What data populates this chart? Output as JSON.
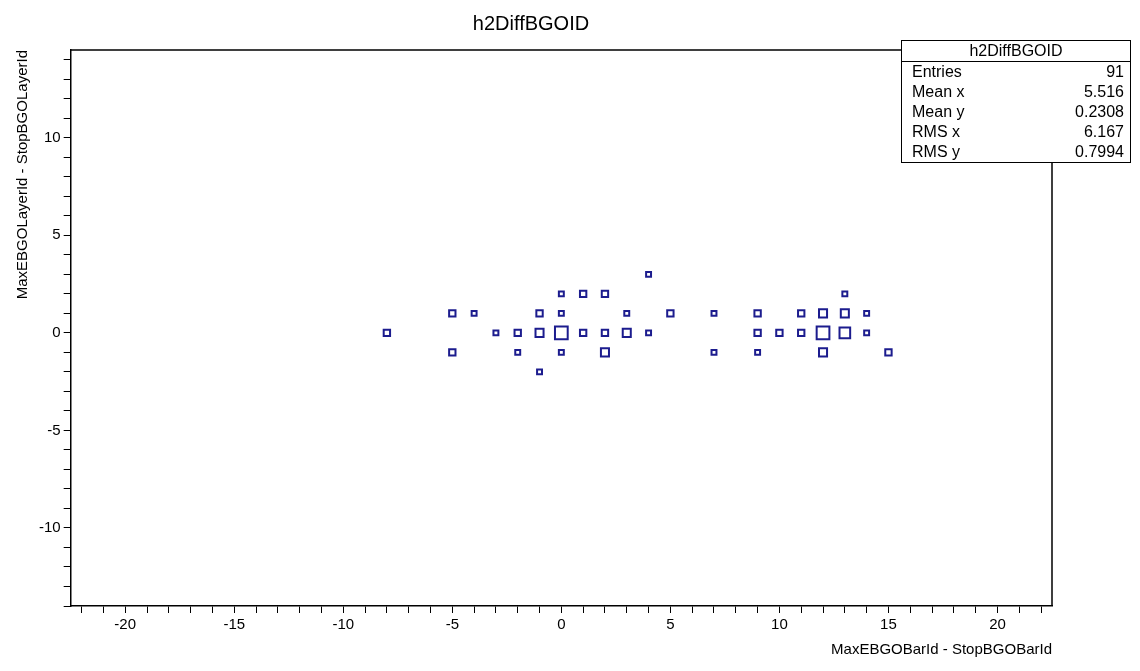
{
  "chart_data": {
    "type": "bubble",
    "title": "h2DiffBGOID",
    "xlabel": "MaxEBGOBarId - StopBGOBarId",
    "ylabel": "MaxEBGOLayerId - StopBGOLayerId",
    "x": [
      0,
      1,
      2,
      -5,
      -4,
      -1,
      0,
      3,
      5,
      7,
      9,
      11,
      12,
      13,
      14,
      -8,
      -3,
      -2,
      -1,
      0,
      1,
      2,
      3,
      4,
      9,
      10,
      11,
      12,
      13,
      14,
      -5,
      -2,
      0,
      2,
      7,
      9,
      12,
      15,
      -1,
      4,
      13
    ],
    "values": [
      2,
      2,
      2,
      1,
      1,
      1,
      1,
      1,
      1,
      1,
      1,
      1,
      1,
      1,
      1,
      0,
      0,
      0,
      0,
      0,
      0,
      0,
      0,
      0,
      0,
      0,
      0,
      0,
      0,
      0,
      -1,
      -1,
      -1,
      -1,
      -1,
      -1,
      -1,
      -1,
      -2,
      3,
      2
    ],
    "sizes": [
      0.15,
      0.25,
      0.25,
      0.25,
      0.15,
      0.25,
      0.15,
      0.15,
      0.25,
      0.15,
      0.25,
      0.25,
      0.4,
      0.4,
      0.15,
      0.25,
      0.15,
      0.25,
      0.4,
      1,
      0.25,
      0.25,
      0.4,
      0.15,
      0.25,
      0.25,
      0.25,
      1,
      0.7,
      0.15,
      0.25,
      0.15,
      0.15,
      0.4,
      0.15,
      0.15,
      0.4,
      0.25,
      0.15,
      0.15,
      0.15
    ],
    "color": "#1c1c8e",
    "marker": "square",
    "grid": false,
    "legend": false,
    "xlim": [
      -22.5,
      22.5
    ],
    "ylim": [
      -14,
      14.5
    ],
    "xticks": [
      {
        "value": -22,
        "label": null
      },
      {
        "value": -21,
        "label": null
      },
      -20,
      {
        "value": -19,
        "label": null
      },
      {
        "value": -18,
        "label": null
      },
      {
        "value": -17,
        "label": null
      },
      {
        "value": -16,
        "label": null
      },
      -15,
      {
        "value": -14,
        "label": null
      },
      {
        "value": -13,
        "label": null
      },
      {
        "value": -12,
        "label": null
      },
      {
        "value": -11,
        "label": null
      },
      -10,
      {
        "value": -9,
        "label": null
      },
      {
        "value": -8,
        "label": null
      },
      {
        "value": -7,
        "label": null
      },
      {
        "value": -6,
        "label": null
      },
      -5,
      {
        "value": -4,
        "label": null
      },
      {
        "value": -3,
        "label": null
      },
      {
        "value": -2,
        "label": null
      },
      {
        "value": -1,
        "label": null
      },
      0,
      {
        "value": 1,
        "label": null
      },
      {
        "value": 2,
        "label": null
      },
      {
        "value": 3,
        "label": null
      },
      {
        "value": 4,
        "label": null
      },
      5,
      {
        "value": 6,
        "label": null
      },
      {
        "value": 7,
        "label": null
      },
      {
        "value": 8,
        "label": null
      },
      {
        "value": 9,
        "label": null
      },
      10,
      {
        "value": 11,
        "label": null
      },
      {
        "value": 12,
        "label": null
      },
      {
        "value": 13,
        "label": null
      },
      {
        "value": 14,
        "label": null
      },
      15,
      {
        "value": 16,
        "label": null
      },
      {
        "value": 17,
        "label": null
      },
      {
        "value": 18,
        "label": null
      },
      {
        "value": 19,
        "label": null
      },
      20,
      {
        "value": 21,
        "label": null
      },
      {
        "value": 22,
        "label": null
      }
    ],
    "yticks": [
      {
        "value": -14,
        "label": null
      },
      {
        "value": -13,
        "label": null
      },
      {
        "value": -12,
        "label": null
      },
      {
        "value": -11,
        "label": null
      },
      -10,
      {
        "value": -9,
        "label": null
      },
      {
        "value": -8,
        "label": null
      },
      {
        "value": -7,
        "label": null
      },
      {
        "value": -6,
        "label": null
      },
      -5,
      {
        "value": -4,
        "label": null
      },
      {
        "value": -3,
        "label": null
      },
      {
        "value": -2,
        "label": null
      },
      {
        "value": -1,
        "label": null
      },
      0,
      {
        "value": 1,
        "label": null
      },
      {
        "value": 2,
        "label": null
      },
      {
        "value": 3,
        "label": null
      },
      {
        "value": 4,
        "label": null
      },
      5,
      {
        "value": 6,
        "label": null
      },
      {
        "value": 7,
        "label": null
      },
      {
        "value": 8,
        "label": null
      },
      {
        "value": 9,
        "label": null
      },
      10,
      {
        "value": 11,
        "label": null
      },
      {
        "value": 12,
        "label": null
      },
      {
        "value": 13,
        "label": null
      },
      {
        "value": 14,
        "label": null
      }
    ],
    "annotations": [
      "h2DiffBGOID",
      "Entries",
      "91",
      "Mean x",
      "5.516",
      "Mean y",
      "0.2308",
      "RMS x",
      "6.167",
      "RMS y",
      "0.7994"
    ]
  }
}
